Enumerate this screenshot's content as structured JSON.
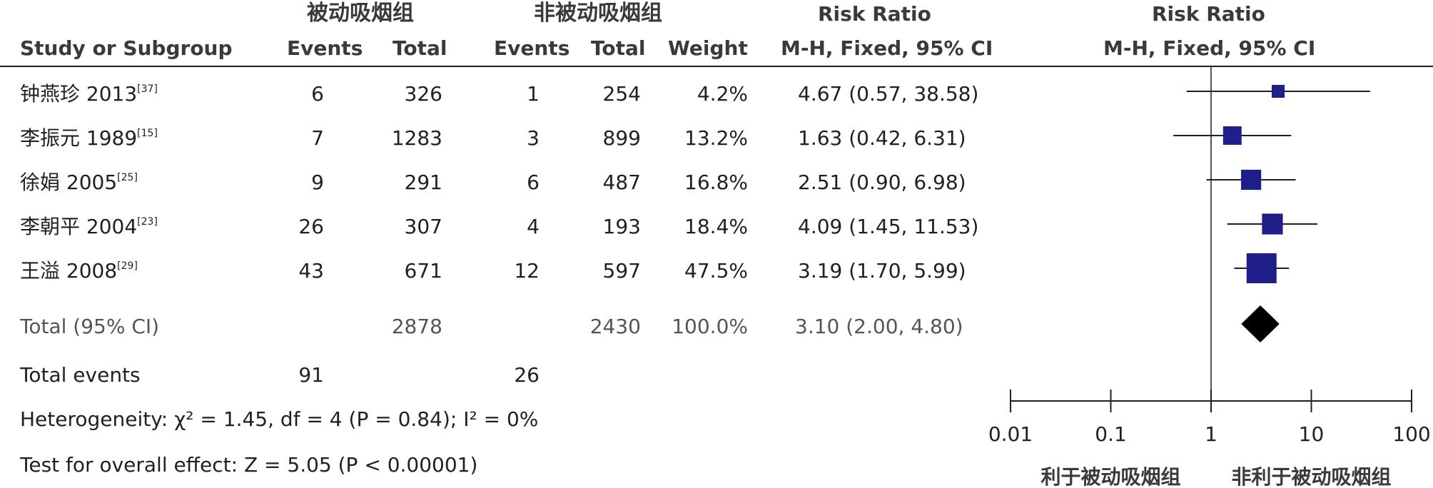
{
  "header": {
    "group1": "被动吸烟组",
    "group2": "非被动吸烟组",
    "rr_title": "Risk Ratio",
    "rr_method": "M-H, Fixed, 95% CI",
    "plot_title": "Risk Ratio",
    "plot_method": "M-H, Fixed, 95% CI",
    "study_col": "Study or Subgroup",
    "events1": "Events",
    "total1": "Total",
    "events2": "Events",
    "total2": "Total",
    "weight": "Weight"
  },
  "studies": [
    {
      "name": "钟燕珍 2013",
      "ref": "[37]",
      "e1": "6",
      "t1": "326",
      "e2": "1",
      "t2": "254",
      "weight": "4.2%",
      "ci": "4.67 (0.57, 38.58)"
    },
    {
      "name": "李振元 1989",
      "ref": "[15]",
      "e1": "7",
      "t1": "1283",
      "e2": "3",
      "t2": "899",
      "weight": "13.2%",
      "ci": "1.63 (0.42, 6.31)"
    },
    {
      "name": "徐娟 2005",
      "ref": "[25]",
      "e1": "9",
      "t1": "291",
      "e2": "6",
      "t2": "487",
      "weight": "16.8%",
      "ci": "2.51 (0.90, 6.98)"
    },
    {
      "name": "李朝平 2004",
      "ref": "[23]",
      "e1": "26",
      "t1": "307",
      "e2": "4",
      "t2": "193",
      "weight": "18.4%",
      "ci": "4.09 (1.45, 11.53)"
    },
    {
      "name": "王溢 2008",
      "ref": "[29]",
      "e1": "43",
      "t1": "671",
      "e2": "12",
      "t2": "597",
      "weight": "47.5%",
      "ci": "3.19 (1.70, 5.99)"
    }
  ],
  "total": {
    "label": "Total (95% CI)",
    "t1": "2878",
    "t2": "2430",
    "weight": "100.0%",
    "ci": "3.10 (2.00, 4.80)"
  },
  "total_events": {
    "label": "Total events",
    "e1": "91",
    "e2": "26"
  },
  "heterogeneity": "Heterogeneity: χ² = 1.45, df = 4 (P = 0.84); I² = 0%",
  "overall_effect": "Test for overall effect: Z = 5.05 (P < 0.00001)",
  "colors": {
    "marker": "#1f1f8a",
    "diamond": "#000000",
    "line": "#231f20"
  },
  "chart_data": {
    "type": "forest",
    "title": "Risk Ratio",
    "subtitle": "M-H, Fixed, 95% CI",
    "x_scale": "log",
    "xlim": [
      0.01,
      100
    ],
    "x_ticks": [
      "0.01",
      "0.1",
      "1",
      "10",
      "100"
    ],
    "x_tick_values": [
      0.01,
      0.1,
      1,
      10,
      100
    ],
    "favours_left": "利于被动吸烟组",
    "favours_right": "非利于被动吸烟组",
    "series": [
      {
        "study": "钟燕珍 2013",
        "rr": 4.67,
        "lo": 0.57,
        "hi": 38.58,
        "weight": 4.2
      },
      {
        "study": "李振元 1989",
        "rr": 1.63,
        "lo": 0.42,
        "hi": 6.31,
        "weight": 13.2
      },
      {
        "study": "徐娟 2005",
        "rr": 2.51,
        "lo": 0.9,
        "hi": 6.98,
        "weight": 16.8
      },
      {
        "study": "李朝平 2004",
        "rr": 4.09,
        "lo": 1.45,
        "hi": 11.53,
        "weight": 18.4
      },
      {
        "study": "王溢 2008",
        "rr": 3.19,
        "lo": 1.7,
        "hi": 5.99,
        "weight": 47.5
      }
    ],
    "pooled": {
      "rr": 3.1,
      "lo": 2.0,
      "hi": 4.8
    }
  }
}
